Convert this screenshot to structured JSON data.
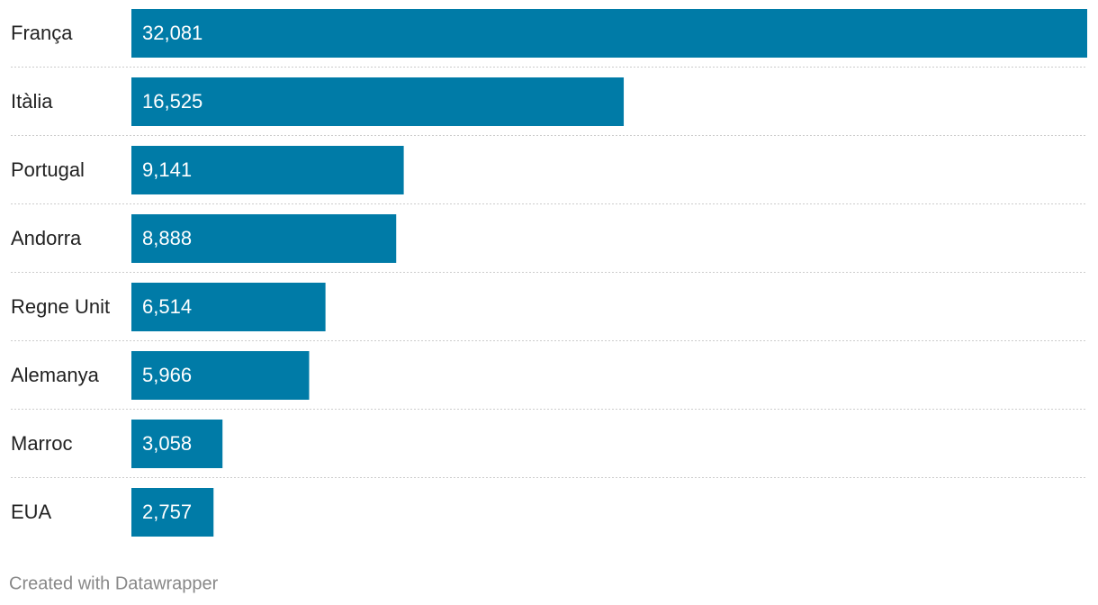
{
  "chart_data": {
    "type": "bar",
    "orientation": "horizontal",
    "categories": [
      "França",
      "Itàlia",
      "Portugal",
      "Andorra",
      "Regne Unit",
      "Alemanya",
      "Marroc",
      "EUA"
    ],
    "values": [
      32081,
      16525,
      9141,
      8888,
      6514,
      5966,
      3058,
      2757
    ],
    "value_labels": [
      "32,081",
      "16,525",
      "9,141",
      "8,888",
      "6,514",
      "5,966",
      "3,058",
      "2,757"
    ],
    "color": "#007ba7"
  },
  "credit": "Created with Datawrapper"
}
